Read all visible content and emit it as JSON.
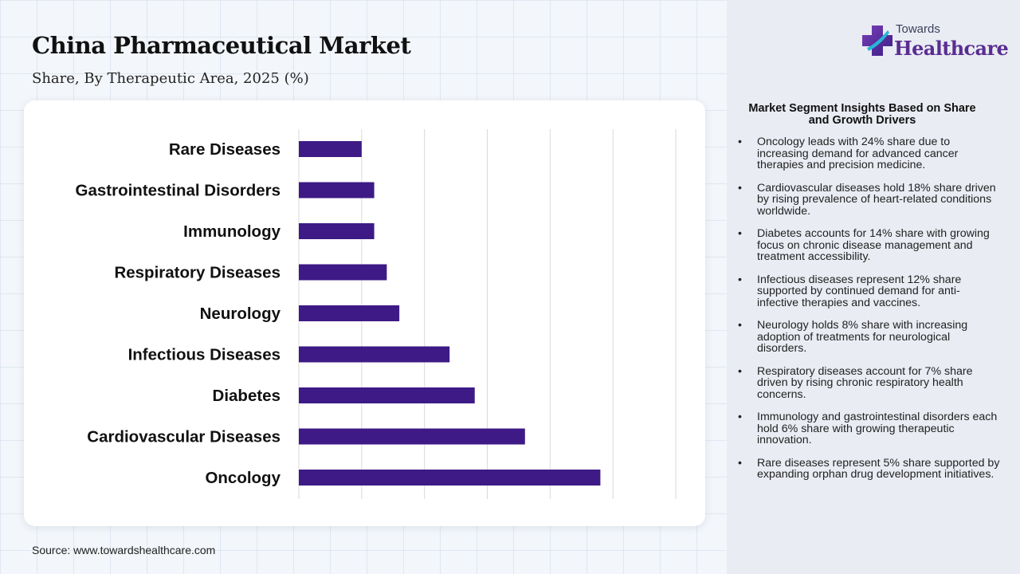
{
  "header": {
    "title": "China Pharmaceutical Market",
    "subtitle": "Share, By Therapeutic Area, 2025 (%)"
  },
  "source": "Source: www.towardshealthcare.com",
  "logo": {
    "top": "Towards",
    "main": "Healthcare",
    "icon": "medical-cross-icon"
  },
  "insights": {
    "title": "Market Segment Insights Based on Share and Growth Drivers",
    "items": [
      "Oncology leads with 24% share due to increasing demand for advanced cancer therapies and precision medicine.",
      "Cardiovascular diseases hold 18% share driven by rising prevalence of heart-related conditions worldwide.",
      "Diabetes accounts for 14% share with growing focus on chronic disease management and treatment accessibility.",
      "Infectious diseases represent 12% share supported by continued demand for anti-infective therapies and vaccines.",
      "Neurology holds 8% share with increasing adoption of treatments for neurological disorders.",
      "Respiratory diseases account for 7% share driven by rising chronic respiratory health concerns.",
      "Immunology and gastrointestinal disorders each hold 6% share with growing therapeutic innovation.",
      "Rare diseases represent 5% share supported by expanding orphan drug development initiatives."
    ]
  },
  "colors": {
    "bar": "#3d1a86",
    "grid": "#d9d9d9",
    "brand": "#5a2d91"
  },
  "chart_data": {
    "type": "bar",
    "orientation": "horizontal",
    "categories": [
      "Rare Diseases",
      "Gastrointestinal Disorders",
      "Immunology",
      "Respiratory Diseases",
      "Neurology",
      "Infectious Diseases",
      "Diabetes",
      "Cardiovascular Diseases",
      "Oncology"
    ],
    "values": [
      5,
      6,
      6,
      7,
      8,
      12,
      14,
      18,
      24
    ],
    "xlim": [
      0,
      30
    ],
    "grid": true,
    "legend": "none"
  }
}
